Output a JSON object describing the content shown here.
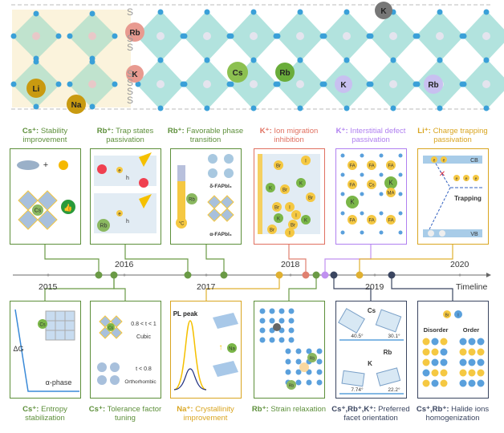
{
  "header_band": {
    "ions_left": [
      "Li",
      "Na"
    ],
    "ions_interface": [
      "Rb",
      "K"
    ],
    "ions_right": [
      "Cs",
      "Rb",
      "K",
      "Rb",
      "K"
    ],
    "interface_marks": "S"
  },
  "colors": {
    "green": "#6a9a45",
    "gold": "#e0b030",
    "red": "#e08070",
    "purple": "#c090f0",
    "navy": "#3a4560",
    "teal": "#7fd1c8",
    "blue": "#4a9ad8"
  },
  "top_panels": [
    {
      "ion": "Cs⁺:",
      "text": "Stability improvement",
      "color": "#5d8f3a",
      "inner": [
        "Cs"
      ]
    },
    {
      "ion": "Rb⁺:",
      "text": "Trap states passivation",
      "color": "#5d8f3a",
      "inner": [
        "e",
        "h",
        "e",
        "h",
        "Rb"
      ]
    },
    {
      "ion": "Rb⁺:",
      "text": "Favorable phase transition",
      "color": "#5d8f3a",
      "inner": [
        "Rb",
        "°C",
        "δ-FAPbI₃",
        "α-FAPbI₃"
      ]
    },
    {
      "ion": "K⁺:",
      "text": "Ion migration inhibition",
      "color": "#e07060",
      "inner": [
        "Br",
        "I",
        "K",
        "Br",
        "K",
        "Br",
        "I",
        "I",
        "Br",
        "K",
        "Br",
        "K",
        "Br",
        "I"
      ]
    },
    {
      "ion": "K⁺:",
      "text": "Interstitial defect passivation",
      "color": "#b080f0",
      "inner": [
        "FA",
        "FA",
        "FA",
        "K",
        "FA",
        "Cs",
        "MA",
        "K",
        "FA",
        "FA",
        "FA"
      ]
    },
    {
      "ion": "Li⁺:",
      "text": "Charge trapping passivation",
      "color": "#d9a520",
      "inner": [
        "CB",
        "e",
        "e",
        "e",
        "e",
        "e",
        "Trapping",
        "VB"
      ]
    }
  ],
  "bottom_panels": [
    {
      "ion": "Cs⁺:",
      "text": "Entropy stabilization",
      "color": "#5d8f3a",
      "inner": [
        "ΔG",
        "Cs",
        "α-phase"
      ]
    },
    {
      "ion": "Cs⁺:",
      "text": "Tolerance factor tuning",
      "color": "#5d8f3a",
      "inner": [
        "0.8 < t < 1",
        "Cubic",
        "t < 0.8",
        "Orthorhombic",
        "Cs"
      ]
    },
    {
      "ion": "Na⁺:",
      "text": "Crystallinity improvement",
      "color": "#d9a520",
      "inner": [
        "PL peak",
        "Na"
      ]
    },
    {
      "ion": "Rb⁺:",
      "text": "Strain relaxation",
      "color": "#5d8f3a",
      "inner": [
        "Rb",
        "Rb"
      ]
    },
    {
      "ion": "Cs⁺,Rb⁺,K⁺:",
      "text": "Preferred facet orientation",
      "color": "#3a4560",
      "inner": [
        "Cs",
        "40.5°",
        "30.1°",
        "Rb",
        "K",
        "7.74°",
        "22.2°"
      ]
    },
    {
      "ion": "Cs⁺,Rb⁺:",
      "text": "Halide ions homogenization",
      "color": "#3a4560",
      "inner": [
        "Br",
        "I",
        "Disorder",
        "Order"
      ]
    }
  ],
  "timeline": {
    "label": "Timeline",
    "years_above": [
      "2016",
      "2018",
      "2020"
    ],
    "years_below": [
      "2015",
      "2017",
      "2019"
    ]
  }
}
